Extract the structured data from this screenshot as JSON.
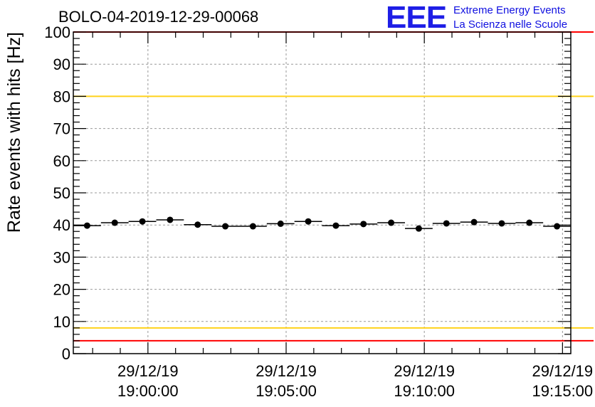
{
  "chart_data": {
    "type": "scatter",
    "title": "BOLO-04-2019-12-29-00068",
    "xlabel": "",
    "ylabel": "Rate events with hits [Hz]",
    "ylim": [
      0,
      100
    ],
    "yticks": [
      0,
      10,
      20,
      30,
      40,
      50,
      60,
      70,
      80,
      90,
      100
    ],
    "x_unit": "minutes since 18:57:18",
    "xlim": [
      0,
      18
    ],
    "x_ticks": [
      {
        "x": 2.7,
        "date": "29/12/19",
        "time": "19:00:00"
      },
      {
        "x": 7.7,
        "date": "29/12/19",
        "time": "19:05:00"
      },
      {
        "x": 12.7,
        "date": "29/12/19",
        "time": "19:10:00"
      },
      {
        "x": 17.7,
        "date": "29/12/19",
        "time": "19:15:00"
      }
    ],
    "bin_width": 1,
    "series": [
      {
        "name": "Rate events with hits",
        "x": [
          0.5,
          1.5,
          2.5,
          3.5,
          4.5,
          5.5,
          6.5,
          7.5,
          8.5,
          9.5,
          10.5,
          11.5,
          12.5,
          13.5,
          14.5,
          15.5,
          16.5,
          17.5
        ],
        "values": [
          39.8,
          40.7,
          41.1,
          41.6,
          40.1,
          39.6,
          39.6,
          40.4,
          41.1,
          39.8,
          40.3,
          40.7,
          38.9,
          40.5,
          40.9,
          40.5,
          40.7,
          39.6
        ]
      }
    ],
    "reference_lines": [
      {
        "y": 80,
        "color": "#ffd21a"
      },
      {
        "y": 8,
        "color": "#ffd21a"
      },
      {
        "y": 4,
        "color": "#ff0000"
      },
      {
        "y": 100,
        "color": "#ff0000"
      }
    ],
    "grid": true
  },
  "logo": {
    "mark": "EEE",
    "line1": "Extreme Energy Events",
    "line2": "La Scienza nelle Scuole"
  },
  "colors": {
    "logo": "#1e1ee6",
    "marker": "#000000",
    "grid": "#999999"
  }
}
